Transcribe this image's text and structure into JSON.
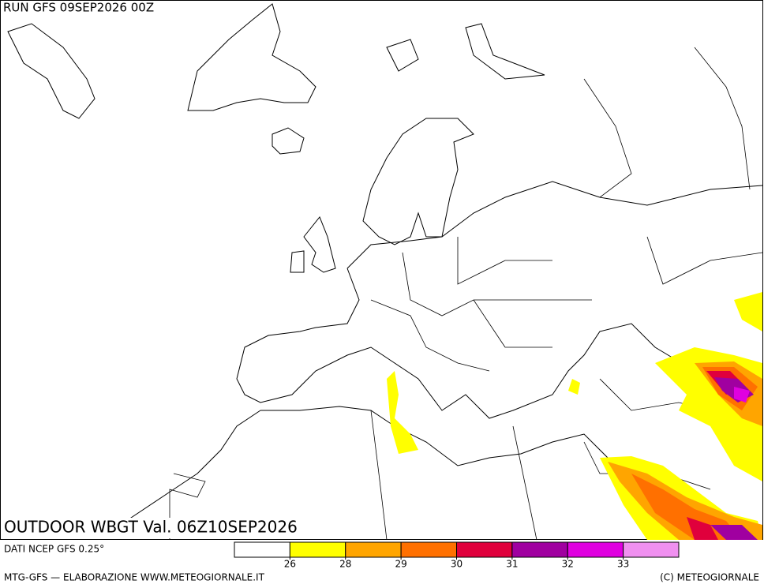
{
  "header": {
    "run": "RUN GFS 09SEP2026 00Z"
  },
  "map": {
    "title": "OUTDOOR WBGT Val. 06Z10SEP2026"
  },
  "source": "DATI NCEP GFS 0.25°",
  "legend": {
    "colors": [
      "#ffffff",
      "#ffff00",
      "#ffa500",
      "#ff7000",
      "#e0003c",
      "#a000a0",
      "#e000e0",
      "#f090f0"
    ],
    "ticks": [
      26,
      28,
      29,
      30,
      31,
      32,
      33
    ]
  },
  "footer": {
    "left": "MTG-GFS — ELABORAZIONE WWW.METEOGIORNALE.IT",
    "right": "(C) METEOGIORNALE"
  }
}
